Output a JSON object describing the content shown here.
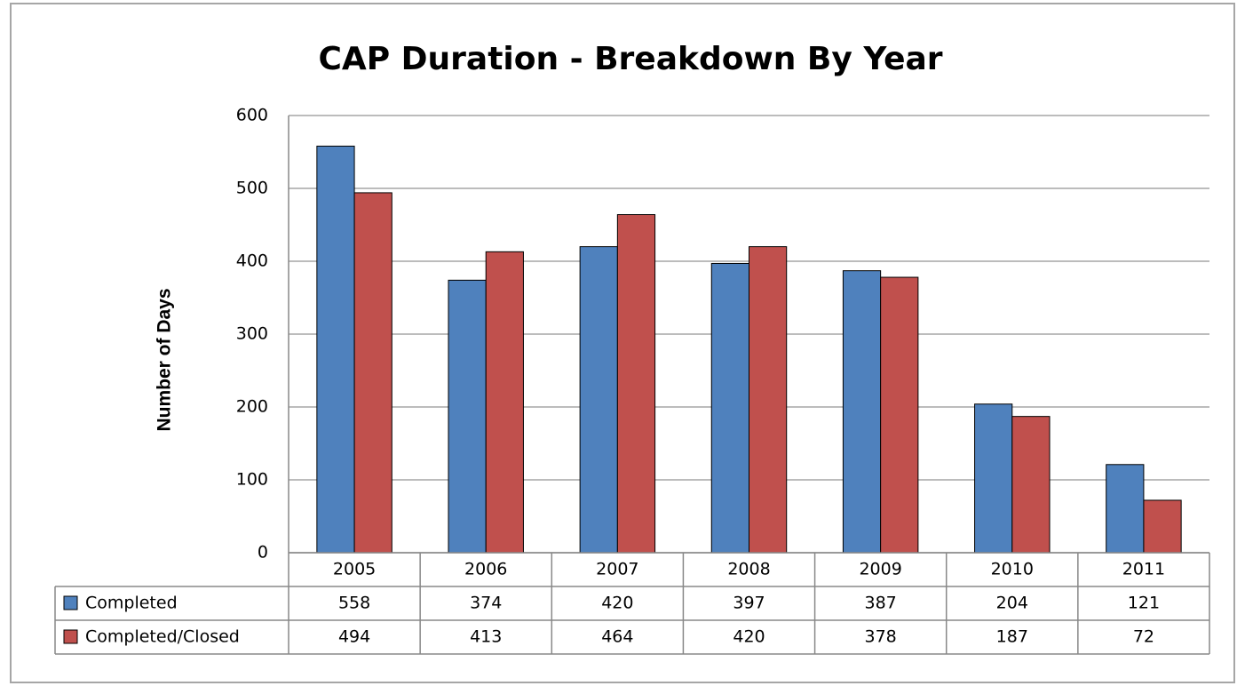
{
  "chart_data": {
    "type": "bar",
    "title": "CAP Duration - Breakdown By Year",
    "y_label": "Number  of Days",
    "categories": [
      "2005",
      "2006",
      "2007",
      "2008",
      "2009",
      "2010",
      "2011"
    ],
    "series": [
      {
        "name": "Completed",
        "color": "#4f81bd",
        "values": [
          558,
          374,
          420,
          397,
          387,
          204,
          121
        ]
      },
      {
        "name": "Completed/Closed",
        "color": "#c0504d",
        "values": [
          494,
          413,
          464,
          420,
          378,
          187,
          72
        ]
      }
    ],
    "ylim": [
      0,
      600
    ],
    "yticks": [
      0,
      100,
      200,
      300,
      400,
      500,
      600
    ],
    "grid": true,
    "data_table": true
  }
}
